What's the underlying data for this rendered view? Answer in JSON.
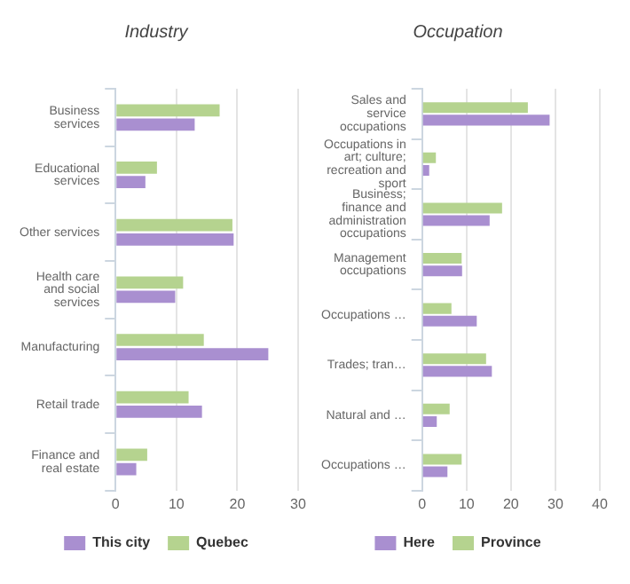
{
  "chart_data": [
    {
      "type": "bar",
      "orientation": "horizontal",
      "title": "Industry",
      "categories": [
        "Business services",
        "Educational services",
        "Other services",
        "Health care and social services",
        "Manufacturing",
        "Retail trade",
        "Finance and real estate"
      ],
      "series": [
        {
          "name": "This city",
          "color": "#a98fd0",
          "values": [
            13.0,
            4.9,
            19.4,
            9.8,
            25.1,
            14.2,
            3.4
          ]
        },
        {
          "name": "Quebec",
          "color": "#b5d38f",
          "values": [
            17.1,
            6.8,
            19.2,
            11.1,
            14.5,
            12.0,
            5.2
          ]
        }
      ],
      "xlim": [
        0,
        30
      ],
      "xticks": [
        0,
        10,
        20,
        30
      ],
      "grid": "x",
      "legend": "bottom"
    },
    {
      "type": "bar",
      "orientation": "horizontal",
      "title": "Occupation",
      "categories": [
        "Sales and service occupations",
        "Occupations in art; culture; recreation and sport",
        "Business; finance and administration occupations",
        "Management occupations",
        "Occupations …",
        "Trades; tran…",
        "Natural and …",
        "Occupations …"
      ],
      "series": [
        {
          "name": "Here",
          "color": "#a98fd0",
          "values": [
            28.7,
            1.6,
            15.2,
            9.0,
            12.3,
            15.7,
            3.3,
            5.7
          ]
        },
        {
          "name": "Province",
          "color": "#b5d38f",
          "values": [
            23.8,
            3.1,
            18.0,
            8.9,
            6.6,
            14.4,
            6.2,
            8.9
          ]
        }
      ],
      "xlim": [
        0,
        40
      ],
      "xticks": [
        0,
        10,
        20,
        30,
        40
      ],
      "grid": "x",
      "legend": "bottom"
    }
  ]
}
